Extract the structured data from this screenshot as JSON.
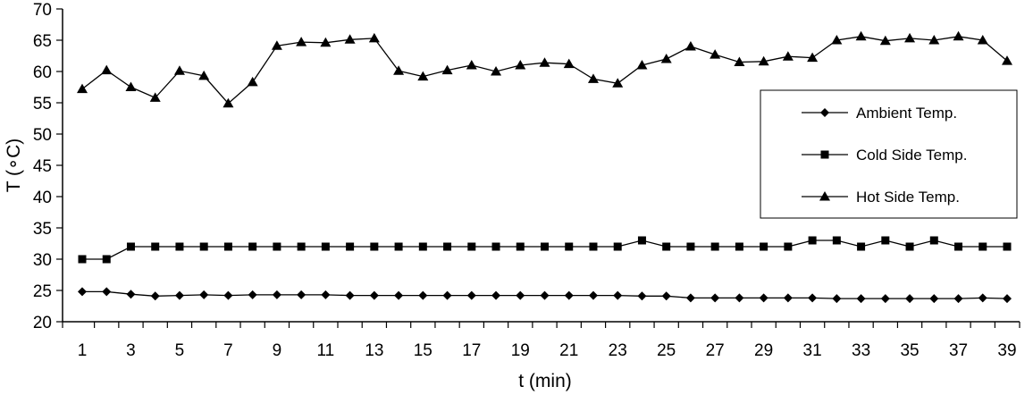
{
  "chart_data": {
    "type": "line",
    "xlabel": "t (min)",
    "ylabel": "T (∘C)",
    "x": [
      1,
      2,
      3,
      4,
      5,
      6,
      7,
      8,
      9,
      10,
      11,
      12,
      13,
      14,
      15,
      16,
      17,
      18,
      19,
      20,
      21,
      22,
      23,
      24,
      25,
      26,
      27,
      28,
      29,
      30,
      31,
      32,
      33,
      34,
      35,
      36,
      37,
      38,
      39
    ],
    "x_tick_labels": [
      "1",
      "3",
      "5",
      "7",
      "9",
      "11",
      "13",
      "15",
      "17",
      "19",
      "21",
      "23",
      "25",
      "27",
      "29",
      "31",
      "33",
      "35",
      "37",
      "39"
    ],
    "y_tick_labels": [
      "20",
      "25",
      "30",
      "35",
      "40",
      "45",
      "50",
      "55",
      "60",
      "65",
      "70"
    ],
    "ylim": [
      20,
      70
    ],
    "xlim": [
      1,
      39
    ],
    "grid": false,
    "legend_position": "right",
    "series": [
      {
        "name": "Ambient Temp.",
        "marker": "diamond",
        "values": [
          24.8,
          24.8,
          24.4,
          24.1,
          24.2,
          24.3,
          24.2,
          24.3,
          24.3,
          24.3,
          24.3,
          24.2,
          24.2,
          24.2,
          24.2,
          24.2,
          24.2,
          24.2,
          24.2,
          24.2,
          24.2,
          24.2,
          24.2,
          24.1,
          24.1,
          23.8,
          23.8,
          23.8,
          23.8,
          23.8,
          23.8,
          23.7,
          23.7,
          23.7,
          23.7,
          23.7,
          23.7,
          23.8,
          23.7
        ]
      },
      {
        "name": "Cold Side Temp.",
        "marker": "square",
        "values": [
          30,
          30,
          32,
          32,
          32,
          32,
          32,
          32,
          32,
          32,
          32,
          32,
          32,
          32,
          32,
          32,
          32,
          32,
          32,
          32,
          32,
          32,
          32,
          33,
          32,
          32,
          32,
          32,
          32,
          32,
          33,
          33,
          32,
          33,
          32,
          33,
          32,
          32,
          32
        ]
      },
      {
        "name": "Hot Side Temp.",
        "marker": "triangle",
        "values": [
          57.2,
          60.2,
          57.5,
          55.8,
          60.1,
          59.3,
          54.9,
          58.3,
          64.1,
          64.7,
          64.6,
          65.1,
          65.3,
          60.1,
          59.2,
          60.2,
          61.0,
          60.0,
          61.0,
          61.4,
          61.2,
          58.8,
          58.1,
          61.0,
          62.0,
          64.0,
          62.7,
          61.5,
          61.6,
          62.4,
          62.2,
          65.0,
          65.6,
          64.9,
          65.3,
          65.0,
          65.6,
          65.0,
          61.7
        ]
      }
    ]
  }
}
